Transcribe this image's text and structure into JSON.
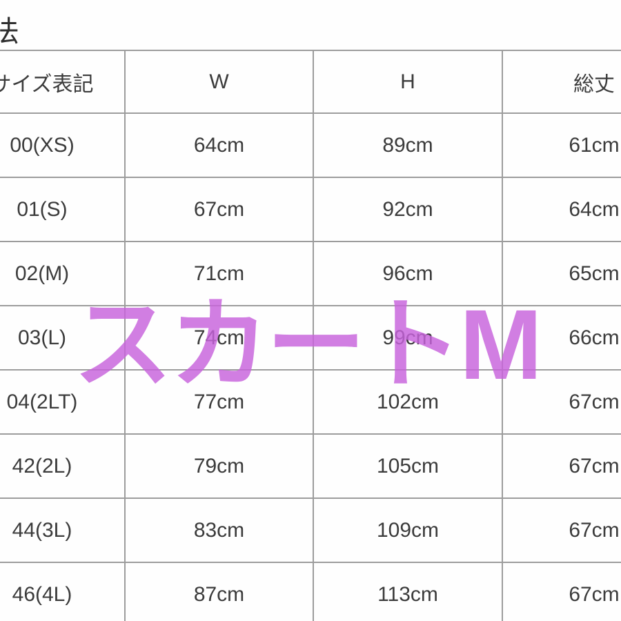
{
  "page_title": "寸法",
  "overlay": {
    "text": "スカートM",
    "color": "#c863dc"
  },
  "colors": {
    "grid_line": "#9c9c9c",
    "text": "#3b3b3b",
    "background": "#fefefe",
    "overlay_pink": "#c863dc"
  },
  "table": {
    "headers": {
      "size": "サイズ表記",
      "w": "W",
      "h": "H",
      "total": "総丈"
    },
    "rows": [
      {
        "size": "00(XS)",
        "w": "64cm",
        "h": "89cm",
        "total": "61cm"
      },
      {
        "size": "01(S)",
        "w": "67cm",
        "h": "92cm",
        "total": "64cm"
      },
      {
        "size": "02(M)",
        "w": "71cm",
        "h": "96cm",
        "total": "65cm"
      },
      {
        "size": "03(L)",
        "w": "74cm",
        "h": "99cm",
        "total": "66cm"
      },
      {
        "size": "04(2LT)",
        "w": "77cm",
        "h": "102cm",
        "total": "67cm"
      },
      {
        "size": "42(2L)",
        "w": "79cm",
        "h": "105cm",
        "total": "67cm"
      },
      {
        "size": "44(3L)",
        "w": "83cm",
        "h": "109cm",
        "total": "67cm"
      },
      {
        "size": "46(4L)",
        "w": "87cm",
        "h": "113cm",
        "total": "67cm"
      }
    ]
  }
}
